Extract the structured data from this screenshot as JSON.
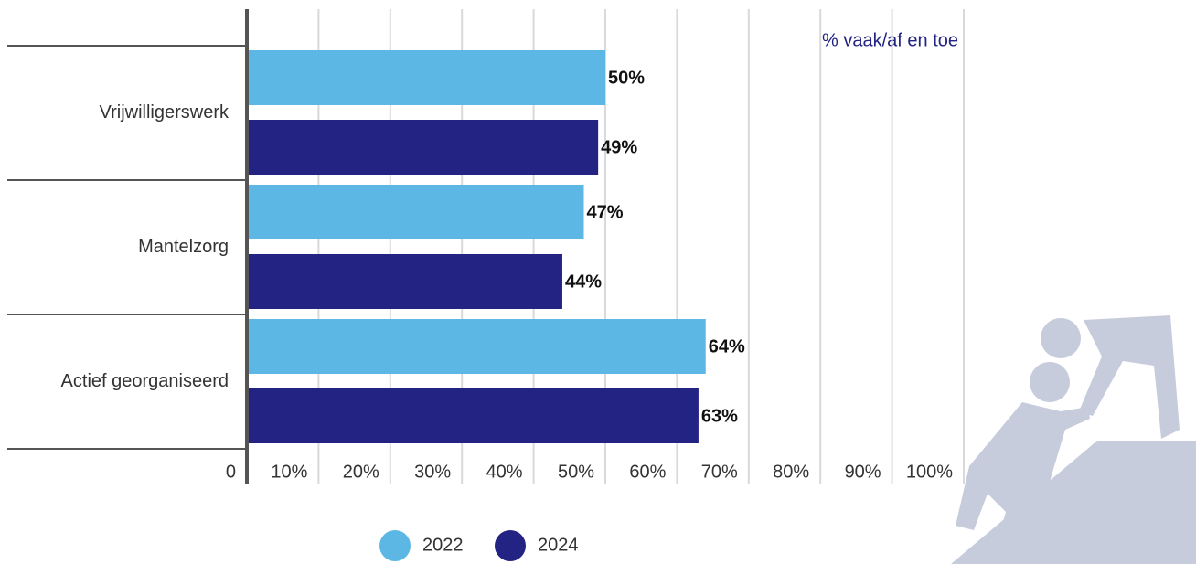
{
  "chart_data": {
    "type": "bar",
    "orientation": "horizontal",
    "annotation": "% vaak/af en toe",
    "categories": [
      "Vrijwilligerswerk",
      "Mantelzorg",
      "Actief georganiseerd"
    ],
    "series": [
      {
        "name": "2022",
        "color": "#5db7e4",
        "values": [
          50,
          47,
          64
        ],
        "value_labels": [
          "50%",
          "47%",
          "64%"
        ]
      },
      {
        "name": "2024",
        "color": "#232383",
        "values": [
          49,
          44,
          63
        ],
        "value_labels": [
          "49%",
          "44%",
          "63%"
        ]
      }
    ],
    "xlim": [
      0,
      100
    ],
    "xticks": [
      0,
      {
        "value": 10,
        "label": "10%"
      },
      {
        "value": 20,
        "label": "20%"
      },
      {
        "value": 30,
        "label": "30%"
      },
      {
        "value": 40,
        "label": "40%"
      },
      {
        "value": 50,
        "label": "50%"
      },
      {
        "value": 60,
        "label": "60%"
      },
      {
        "value": 70,
        "label": "70%"
      },
      {
        "value": 80,
        "label": "80%"
      },
      {
        "value": 90,
        "label": "90%"
      },
      {
        "value": 100,
        "label": "100%"
      }
    ],
    "grid": true
  }
}
